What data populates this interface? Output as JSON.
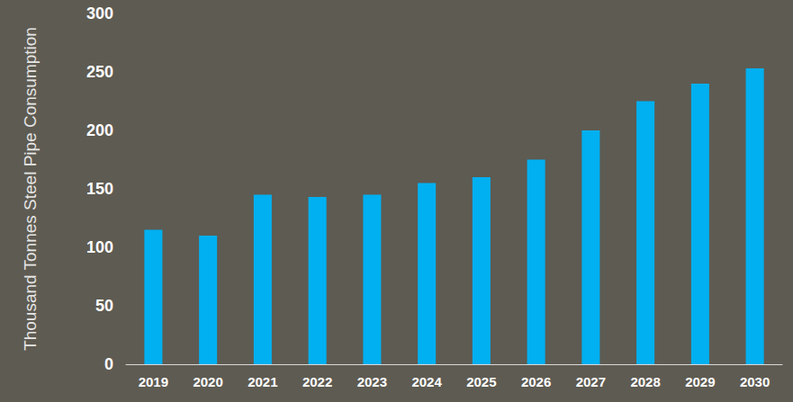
{
  "chart_data": {
    "type": "bar",
    "y_label": "Thousand Tonnes Steel Pipe Consumption",
    "categories": [
      "2019",
      "2020",
      "2021",
      "2022",
      "2023",
      "2024",
      "2025",
      "2026",
      "2027",
      "2028",
      "2029",
      "2030"
    ],
    "values": [
      115,
      110,
      145,
      143,
      145,
      155,
      160,
      175,
      200,
      225,
      240,
      253
    ],
    "color": "#00b0f0",
    "ylim": [
      0,
      300
    ],
    "yticks": [
      0,
      50,
      100,
      150,
      200,
      250,
      300
    ],
    "grid": false
  }
}
